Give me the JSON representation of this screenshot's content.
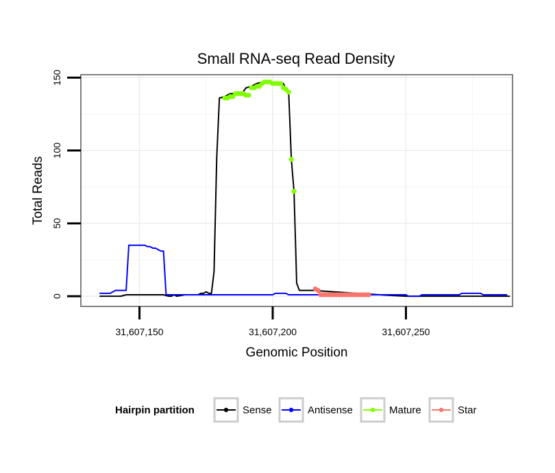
{
  "chart_data": {
    "type": "line",
    "title": "Small RNA-seq Read Density",
    "xlabel": "Genomic Position",
    "ylabel": "Total Reads",
    "xlim": [
      31607128,
      31607290
    ],
    "ylim": [
      -7,
      152
    ],
    "x_ticks": [
      31607150,
      31607200,
      31607250
    ],
    "x_tick_labels": [
      "31,607,150",
      "31,607,200",
      "31,607,250"
    ],
    "y_ticks": [
      0,
      50,
      100,
      150
    ],
    "y_tick_labels": [
      "0",
      "50",
      "100",
      "150"
    ],
    "grid": true,
    "legend": {
      "title": "Hairpin partition",
      "position": "bottom",
      "items": [
        {
          "label": "Sense",
          "color": "#000000"
        },
        {
          "label": "Antisense",
          "color": "#0000ff"
        },
        {
          "label": "Mature",
          "color": "#80ff00"
        },
        {
          "label": "Star",
          "color": "#f8766d"
        }
      ]
    },
    "series": [
      {
        "name": "Sense",
        "color": "#000000",
        "style": "line",
        "x": [
          31607135,
          31607143,
          31607145,
          31607159,
          31607161,
          31607162,
          31607163,
          31607164,
          31607167,
          31607171,
          31607172,
          31607173,
          31607174,
          31607175,
          31607176,
          31607177,
          31607178,
          31607179,
          31607180,
          31607182,
          31607184,
          31607186,
          31607188,
          31607190,
          31607192,
          31607194,
          31607196,
          31607198,
          31607200,
          31607202,
          31607204,
          31607205,
          31607206,
          31607207,
          31607208,
          31607209,
          31607210,
          31607212,
          31607215,
          31607240,
          31607250,
          31607260,
          31607270,
          31607280,
          31607289
        ],
        "y": [
          0,
          0,
          1,
          1,
          0,
          0,
          1,
          0,
          1,
          1,
          1,
          2,
          2,
          3,
          2,
          2,
          17,
          95,
          136,
          137,
          139,
          139,
          138,
          143,
          144,
          146,
          147,
          147,
          147,
          146,
          146,
          142,
          140,
          94,
          72,
          9,
          4,
          4,
          4,
          1,
          0,
          0,
          0,
          0,
          0
        ]
      },
      {
        "name": "Antisense",
        "color": "#0000ff",
        "style": "line",
        "x": [
          31607135,
          31607139,
          31607140,
          31607141,
          31607145,
          31607146,
          31607152,
          31607153,
          31607154,
          31607155,
          31607156,
          31607157,
          31607158,
          31607159,
          31607160,
          31607200,
          31607201,
          31607205,
          31607206,
          31607250,
          31607251,
          31607255,
          31607256,
          31607270,
          31607271,
          31607278,
          31607279,
          31607288
        ],
        "y": [
          2,
          2,
          3,
          4,
          4,
          35,
          35,
          34,
          34,
          33,
          33,
          32,
          31,
          31,
          1,
          1,
          2,
          2,
          1,
          1,
          0,
          0,
          1,
          1,
          2,
          2,
          1,
          1
        ]
      },
      {
        "name": "Mature",
        "color": "#80ff00",
        "style": "points",
        "x": [
          31607182,
          31607183,
          31607184,
          31607185,
          31607186,
          31607187,
          31607188,
          31607189,
          31607190,
          31607191,
          31607192,
          31607193,
          31607194,
          31607195,
          31607196,
          31607197,
          31607198,
          31607199,
          31607200,
          31607201,
          31607202,
          31607203,
          31607204,
          31607205,
          31607206,
          31607207,
          31607208
        ],
        "y": [
          136,
          136,
          137,
          137,
          139,
          139,
          139,
          139,
          138,
          138,
          143,
          143,
          144,
          144,
          146,
          147,
          147,
          147,
          146,
          146,
          146,
          146,
          143,
          142,
          140,
          94,
          72
        ]
      },
      {
        "name": "Star",
        "color": "#f8766d",
        "style": "line-points",
        "x": [
          31607216,
          31607217,
          31607218,
          31607219,
          31607220,
          31607221,
          31607222,
          31607223,
          31607224,
          31607225,
          31607226,
          31607227,
          31607228,
          31607229,
          31607230,
          31607231,
          31607232,
          31607233,
          31607234,
          31607235,
          31607236
        ],
        "y": [
          5,
          4,
          1,
          1,
          1,
          1,
          1,
          1,
          1,
          1,
          1,
          1,
          1,
          1,
          1,
          1,
          1,
          1,
          1,
          1,
          1
        ]
      }
    ]
  }
}
